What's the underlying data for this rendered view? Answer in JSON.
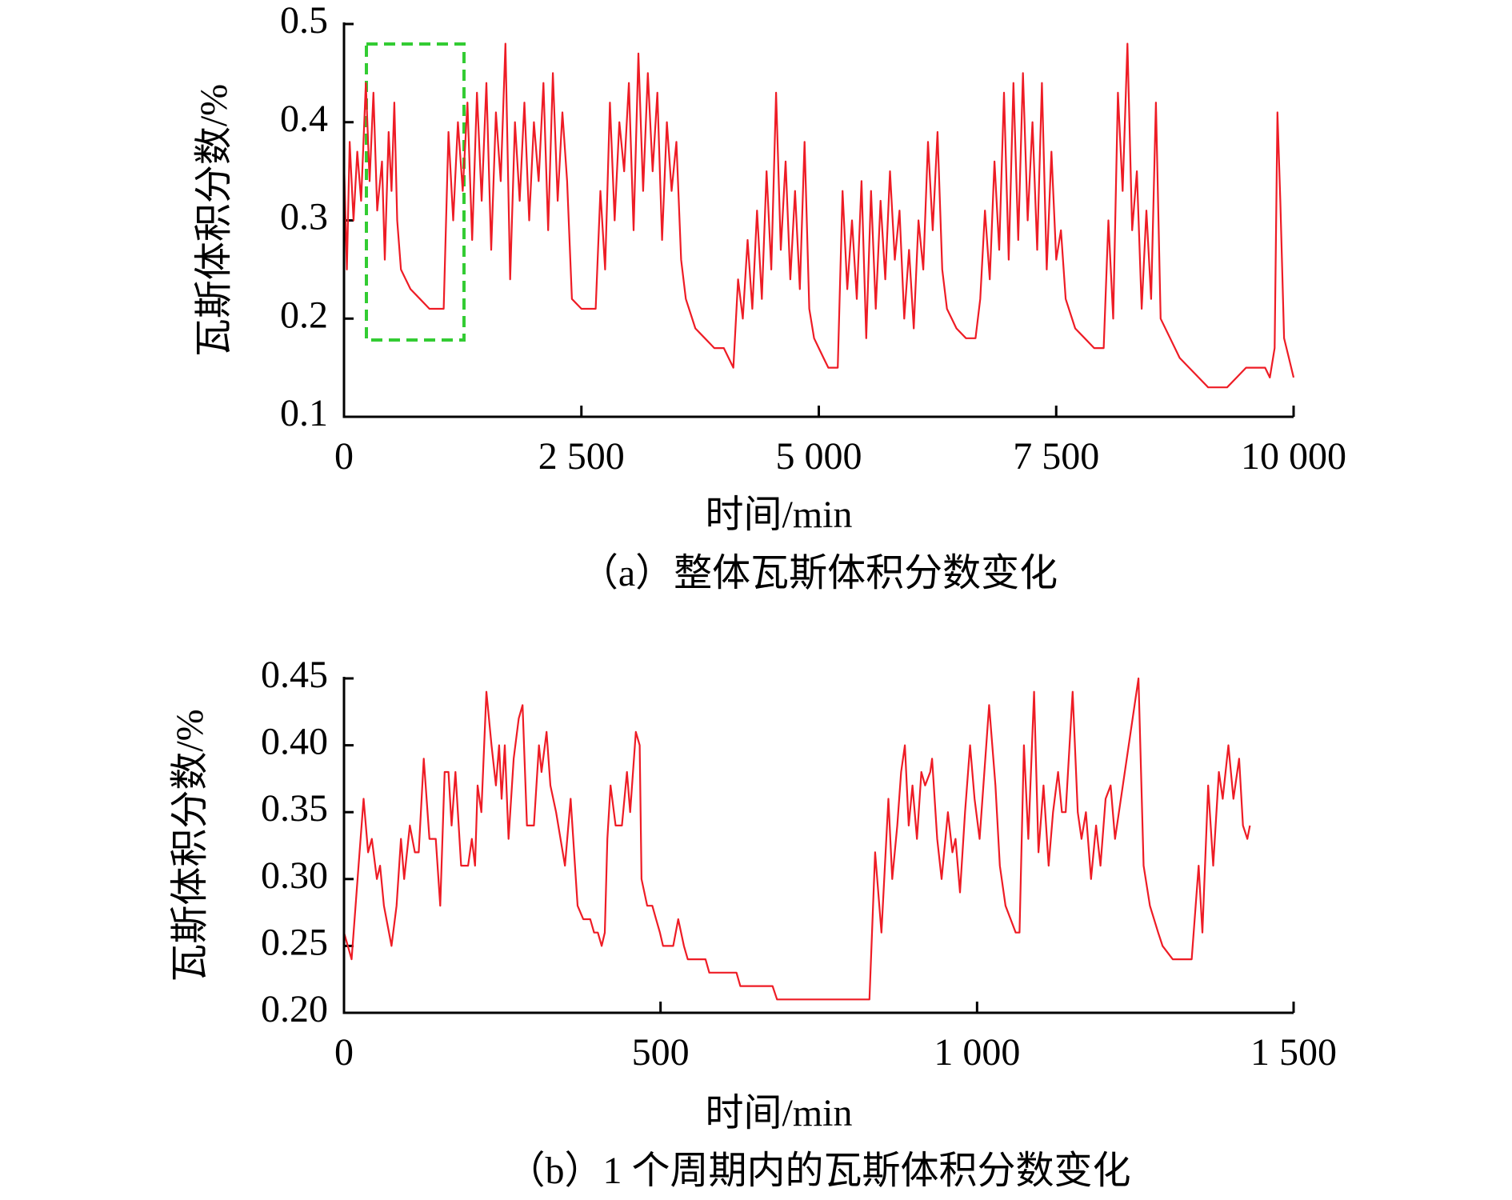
{
  "chart_data": [
    {
      "type": "line",
      "title": "（a）整体瓦斯体积分数变化",
      "xlabel": "时间/min",
      "ylabel": "瓦斯体积分数/%",
      "color": "#ee1c25",
      "xlim": [
        0,
        10000
      ],
      "ylim": [
        0.1,
        0.5
      ],
      "xticks": [
        0,
        {
          "value": 2500,
          "label": "2 500"
        },
        {
          "value": 5000,
          "label": "5 000"
        },
        {
          "value": 7500,
          "label": "7 500"
        },
        {
          "value": 10000,
          "label": "10 000"
        }
      ],
      "yticks": [
        0.1,
        0.2,
        0.3,
        0.4,
        0.5
      ],
      "grid": false,
      "x": [
        0,
        30,
        60,
        100,
        140,
        180,
        230,
        270,
        310,
        350,
        400,
        430,
        470,
        500,
        530,
        560,
        600,
        700,
        800,
        900,
        1050,
        1100,
        1150,
        1200,
        1250,
        1300,
        1350,
        1400,
        1450,
        1500,
        1550,
        1600,
        1650,
        1700,
        1750,
        1800,
        1850,
        1900,
        1950,
        2000,
        2050,
        2100,
        2150,
        2200,
        2250,
        2300,
        2350,
        2400,
        2500,
        2600,
        2650,
        2700,
        2750,
        2800,
        2850,
        2900,
        2950,
        3000,
        3050,
        3100,
        3150,
        3200,
        3250,
        3300,
        3350,
        3400,
        3450,
        3500,
        3550,
        3600,
        3700,
        3800,
        3900,
        4000,
        4100,
        4150,
        4200,
        4250,
        4300,
        4350,
        4400,
        4450,
        4500,
        4550,
        4600,
        4650,
        4700,
        4750,
        4800,
        4850,
        4900,
        4950,
        5000,
        5050,
        5100,
        5150,
        5200,
        5250,
        5300,
        5350,
        5400,
        5450,
        5500,
        5550,
        5600,
        5650,
        5700,
        5750,
        5800,
        5850,
        5900,
        5950,
        6000,
        6050,
        6100,
        6150,
        6200,
        6250,
        6300,
        6350,
        6450,
        6550,
        6650,
        6700,
        6750,
        6800,
        6850,
        6900,
        6950,
        7000,
        7050,
        7100,
        7150,
        7200,
        7250,
        7300,
        7350,
        7400,
        7450,
        7500,
        7550,
        7600,
        7700,
        7800,
        7900,
        8000,
        8050,
        8100,
        8150,
        8200,
        8250,
        8300,
        8350,
        8400,
        8450,
        8500,
        8550,
        8600,
        8700,
        8800,
        8900,
        9000,
        9100,
        9300,
        9400,
        9500,
        9700,
        9750,
        9800,
        9830,
        9860,
        9900,
        9950,
        10000
      ],
      "values": [
        0.36,
        0.25,
        0.38,
        0.3,
        0.37,
        0.32,
        0.44,
        0.34,
        0.43,
        0.31,
        0.36,
        0.26,
        0.39,
        0.33,
        0.42,
        0.3,
        0.25,
        0.23,
        0.22,
        0.21,
        0.21,
        0.39,
        0.3,
        0.4,
        0.33,
        0.42,
        0.28,
        0.43,
        0.32,
        0.44,
        0.27,
        0.41,
        0.34,
        0.48,
        0.24,
        0.4,
        0.32,
        0.42,
        0.3,
        0.4,
        0.34,
        0.44,
        0.29,
        0.45,
        0.32,
        0.41,
        0.34,
        0.22,
        0.21,
        0.21,
        0.21,
        0.33,
        0.25,
        0.42,
        0.3,
        0.4,
        0.35,
        0.44,
        0.29,
        0.47,
        0.33,
        0.45,
        0.35,
        0.43,
        0.28,
        0.4,
        0.33,
        0.38,
        0.26,
        0.22,
        0.19,
        0.18,
        0.17,
        0.17,
        0.15,
        0.24,
        0.2,
        0.28,
        0.21,
        0.31,
        0.22,
        0.35,
        0.25,
        0.43,
        0.27,
        0.36,
        0.24,
        0.33,
        0.23,
        0.38,
        0.21,
        0.18,
        0.17,
        0.16,
        0.15,
        0.15,
        0.15,
        0.33,
        0.23,
        0.3,
        0.22,
        0.34,
        0.18,
        0.33,
        0.21,
        0.32,
        0.24,
        0.35,
        0.26,
        0.31,
        0.2,
        0.27,
        0.19,
        0.3,
        0.25,
        0.38,
        0.29,
        0.39,
        0.25,
        0.21,
        0.19,
        0.18,
        0.18,
        0.22,
        0.31,
        0.24,
        0.36,
        0.27,
        0.43,
        0.26,
        0.44,
        0.28,
        0.45,
        0.3,
        0.4,
        0.27,
        0.44,
        0.25,
        0.37,
        0.26,
        0.29,
        0.22,
        0.19,
        0.18,
        0.17,
        0.17,
        0.3,
        0.2,
        0.43,
        0.33,
        0.48,
        0.29,
        0.35,
        0.21,
        0.31,
        0.22,
        0.42,
        0.2,
        0.18,
        0.16,
        0.15,
        0.14,
        0.13,
        0.13,
        0.14,
        0.15,
        0.15,
        0.14,
        0.17,
        0.41,
        0.32,
        0.18,
        0.16,
        0.14
      ]
    },
    {
      "type": "line",
      "title": "（b）1 个周期内的瓦斯体积分数变化",
      "xlabel": "时间/min",
      "ylabel": "瓦斯体积分数/%",
      "color": "#ee1c25",
      "xlim": [
        0,
        1500
      ],
      "ylim": [
        0.2,
        0.45
      ],
      "xticks": [
        0,
        500,
        {
          "value": 1000,
          "label": "1 000"
        },
        {
          "value": 1500,
          "label": "1 500"
        }
      ],
      "yticks": [
        {
          "value": 0.2,
          "label": "0.20"
        },
        0.25,
        {
          "value": 0.3,
          "label": "0.30"
        },
        0.35,
        {
          "value": 0.4,
          "label": "0.40"
        },
        0.45
      ],
      "grid": false,
      "x": [
        0,
        12,
        23,
        31,
        38,
        44,
        52,
        57,
        63,
        75,
        83,
        90,
        95,
        104,
        112,
        118,
        126,
        135,
        145,
        152,
        159,
        165,
        170,
        176,
        185,
        196,
        202,
        207,
        211,
        217,
        225,
        233,
        240,
        245,
        249,
        254,
        260,
        268,
        276,
        282,
        289,
        300,
        308,
        312,
        320,
        326,
        335,
        349,
        358,
        369,
        378,
        389,
        395,
        401,
        407,
        412,
        416,
        421,
        429,
        439,
        447,
        452,
        461,
        467,
        470,
        479,
        487,
        493,
        499,
        504,
        520,
        528,
        537,
        543,
        571,
        577,
        620,
        626,
        677,
        684,
        830,
        839,
        849,
        860,
        866,
        874,
        880,
        886,
        892,
        898,
        905,
        912,
        918,
        926,
        929,
        937,
        944,
        954,
        961,
        966,
        973,
        981,
        989,
        996,
        1004,
        1019,
        1029,
        1036,
        1045,
        1053,
        1061,
        1067,
        1074,
        1081,
        1090,
        1097,
        1105,
        1113,
        1120,
        1128,
        1134,
        1140,
        1151,
        1159,
        1165,
        1172,
        1180,
        1188,
        1195,
        1203,
        1211,
        1218,
        1255,
        1263,
        1273,
        1286,
        1293,
        1309,
        1339,
        1350,
        1356,
        1365,
        1373,
        1382,
        1388,
        1397,
        1405,
        1414,
        1420,
        1427,
        1431
      ],
      "values": [
        0.26,
        0.24,
        0.31,
        0.36,
        0.32,
        0.33,
        0.3,
        0.31,
        0.28,
        0.25,
        0.28,
        0.33,
        0.3,
        0.34,
        0.32,
        0.32,
        0.39,
        0.33,
        0.33,
        0.28,
        0.38,
        0.38,
        0.34,
        0.38,
        0.31,
        0.31,
        0.33,
        0.31,
        0.37,
        0.35,
        0.44,
        0.4,
        0.37,
        0.4,
        0.36,
        0.4,
        0.33,
        0.39,
        0.42,
        0.43,
        0.34,
        0.34,
        0.4,
        0.38,
        0.41,
        0.37,
        0.35,
        0.31,
        0.36,
        0.28,
        0.27,
        0.27,
        0.26,
        0.26,
        0.25,
        0.26,
        0.33,
        0.37,
        0.34,
        0.34,
        0.38,
        0.35,
        0.41,
        0.4,
        0.3,
        0.28,
        0.28,
        0.27,
        0.26,
        0.25,
        0.25,
        0.27,
        0.25,
        0.24,
        0.24,
        0.23,
        0.23,
        0.22,
        0.22,
        0.21,
        0.21,
        0.32,
        0.26,
        0.36,
        0.3,
        0.34,
        0.38,
        0.4,
        0.34,
        0.37,
        0.33,
        0.38,
        0.37,
        0.38,
        0.39,
        0.33,
        0.3,
        0.35,
        0.32,
        0.33,
        0.29,
        0.35,
        0.4,
        0.36,
        0.33,
        0.43,
        0.37,
        0.31,
        0.28,
        0.27,
        0.26,
        0.26,
        0.4,
        0.33,
        0.44,
        0.32,
        0.37,
        0.31,
        0.35,
        0.38,
        0.35,
        0.35,
        0.44,
        0.35,
        0.33,
        0.35,
        0.3,
        0.34,
        0.31,
        0.36,
        0.37,
        0.33,
        0.45,
        0.31,
        0.28,
        0.26,
        0.25,
        0.24,
        0.24,
        0.31,
        0.26,
        0.37,
        0.31,
        0.38,
        0.36,
        0.4,
        0.36,
        0.39,
        0.34,
        0.33,
        0.34
      ]
    }
  ]
}
